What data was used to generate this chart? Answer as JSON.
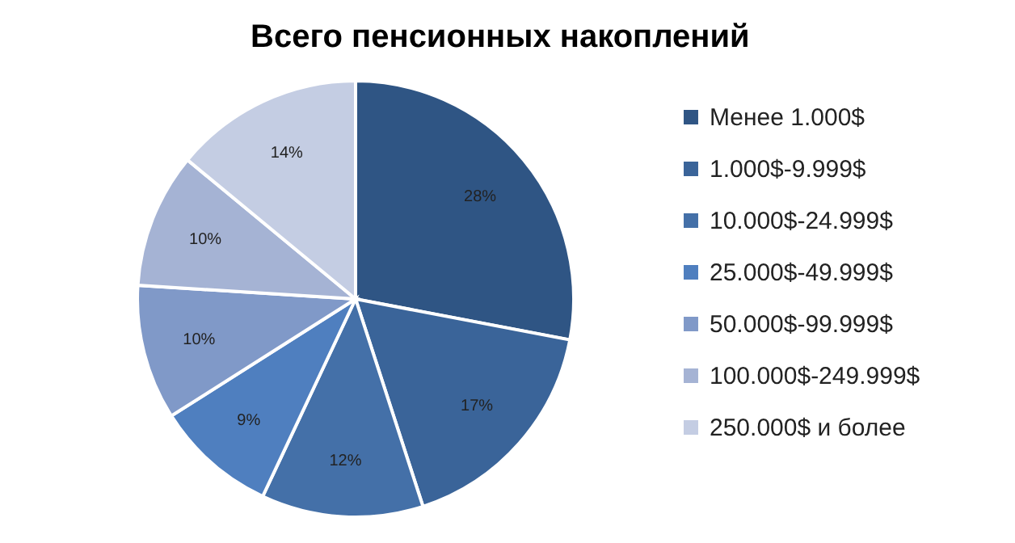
{
  "chart_data": {
    "type": "pie",
    "title": "Всего пенсионных накоплений",
    "categories": [
      "Менее 1.000$",
      "1.000$-9.999$",
      "10.000$-24.999$",
      "25.000$-49.999$",
      "50.000$-99.999$",
      "100.000$-249.999$",
      "250.000$ и более"
    ],
    "values": [
      28,
      17,
      12,
      9,
      10,
      10,
      14
    ],
    "colors": [
      "#2f5584",
      "#3a6499",
      "#4470a8",
      "#4f7fbf",
      "#8099c8",
      "#a5b3d4",
      "#c4cde3"
    ],
    "value_labels": [
      "28%",
      "17%",
      "12%",
      "9%",
      "10%",
      "10%",
      "14%"
    ],
    "legend": "right"
  }
}
